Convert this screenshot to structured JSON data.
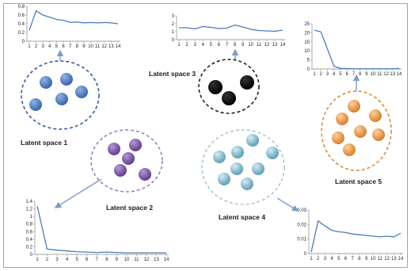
{
  "labels": {
    "space1": "Latent space 1",
    "space2": "Latent space 2",
    "space3": "Latent space 3",
    "space4": "Latent space 4",
    "space5": "Latent space 5"
  },
  "colors": {
    "frame": "#9aa7b6",
    "line": "#4a7ebb",
    "arrow": "#7f9cc7",
    "space1_fill": "#4f7fc4",
    "space1_border": "#3a5d94",
    "space2_fill": "#7b5aa6",
    "space2_border": "#9b7fc0",
    "space3_fill": "#000000",
    "space3_border": "#222222",
    "space4_fill": "#7fb8cc",
    "space4_border": "#a8c6d4",
    "space5_fill": "#e69a4c",
    "space5_border": "#d98a3a"
  },
  "chart_data": [
    {
      "id": "space1",
      "type": "line",
      "x": [
        1,
        2,
        3,
        4,
        5,
        6,
        7,
        8,
        9,
        10,
        11,
        12,
        13,
        14
      ],
      "x_tick_labels": [
        "1",
        "2",
        "3",
        "4",
        "5",
        "6",
        "7",
        "8",
        "9",
        "10",
        "11",
        "12",
        "13",
        "14"
      ],
      "y": [
        0.25,
        0.7,
        0.6,
        0.55,
        0.5,
        0.48,
        0.43,
        0.44,
        0.42,
        0.43,
        0.42,
        0.43,
        0.42,
        0.4
      ],
      "ylim": [
        0,
        0.8
      ],
      "y_ticks": [
        0,
        0.2,
        0.4,
        0.6,
        0.8
      ],
      "y_tick_labels": [
        "0",
        "0.2",
        "0.4",
        "0.6",
        "0.8"
      ],
      "grid": false
    },
    {
      "id": "space3",
      "type": "line",
      "x": [
        1,
        2,
        3,
        4,
        5,
        6,
        7,
        8,
        9,
        10,
        11,
        12,
        13,
        14
      ],
      "x_tick_labels": [
        "1",
        "2",
        "3",
        "4",
        "5",
        "6",
        "7",
        "8",
        "9",
        "10",
        "11",
        "12",
        "13",
        "14"
      ],
      "y": [
        1.5,
        1.5,
        1.35,
        1.65,
        1.55,
        1.4,
        1.45,
        1.85,
        1.6,
        1.3,
        1.15,
        1.1,
        1.05,
        1.2
      ],
      "ylim": [
        0,
        3
      ],
      "y_ticks": [
        0,
        1,
        2,
        3
      ],
      "y_tick_labels": [
        "0",
        "1",
        "2",
        "3"
      ],
      "grid": false
    },
    {
      "id": "space5",
      "type": "line",
      "x": [
        1,
        2,
        3,
        4,
        5,
        6,
        7,
        8,
        9,
        10,
        11,
        12,
        13,
        14
      ],
      "x_tick_labels": [
        "1",
        "2",
        "3",
        "4",
        "5",
        "6",
        "7",
        "8",
        "9",
        "10",
        "11",
        "12",
        "13",
        "14"
      ],
      "y": [
        21.5,
        20.5,
        11,
        1.5,
        0.3,
        0.2,
        0.1,
        0.1,
        0.1,
        0.1,
        0.1,
        0.1,
        0.1,
        0.3
      ],
      "ylim": [
        0,
        25
      ],
      "y_ticks": [
        0,
        5,
        10,
        15,
        20,
        25
      ],
      "y_tick_labels": [
        "0",
        "5",
        "10",
        "15",
        "20",
        "25"
      ],
      "grid": false
    },
    {
      "id": "space2",
      "type": "line",
      "x": [
        1,
        2,
        3,
        4,
        5,
        6,
        7,
        8,
        9,
        10,
        11,
        12,
        13,
        14
      ],
      "x_tick_labels": [
        "1",
        "2",
        "3",
        "4",
        "5",
        "6",
        "7",
        "8",
        "9",
        "10",
        "11",
        "12",
        "13",
        "14"
      ],
      "y": [
        1.27,
        0.14,
        0.11,
        0.09,
        0.07,
        0.06,
        0.05,
        0.06,
        0.05,
        0.04,
        0.04,
        0.04,
        0.04,
        0.04
      ],
      "ylim": [
        0,
        1.4
      ],
      "y_ticks": [
        0,
        0.2,
        0.4,
        0.6,
        0.8,
        1.0,
        1.2,
        1.4
      ],
      "y_tick_labels": [
        "0",
        "0.2",
        "0.4",
        "0.6",
        "0.8",
        "1",
        "1.2",
        "1.4"
      ],
      "grid": false
    },
    {
      "id": "space4",
      "type": "line",
      "x": [
        1,
        2,
        3,
        4,
        5,
        6,
        7,
        8,
        9,
        10,
        11,
        12,
        13,
        14
      ],
      "x_tick_labels": [
        "1",
        "2",
        "3",
        "4",
        "5",
        "6",
        "7",
        "8",
        "9",
        "10",
        "11",
        "12",
        "13",
        "14"
      ],
      "y": [
        0.001,
        0.0225,
        0.019,
        0.016,
        0.015,
        0.0145,
        0.0135,
        0.013,
        0.0125,
        0.012,
        0.0115,
        0.012,
        0.0115,
        0.014
      ],
      "ylim": [
        0,
        0.03
      ],
      "y_ticks": [
        0,
        0.01,
        0.02,
        0.03
      ],
      "y_tick_labels": [
        "0",
        "0.01",
        "0.02",
        "0.03"
      ],
      "grid": false
    }
  ]
}
